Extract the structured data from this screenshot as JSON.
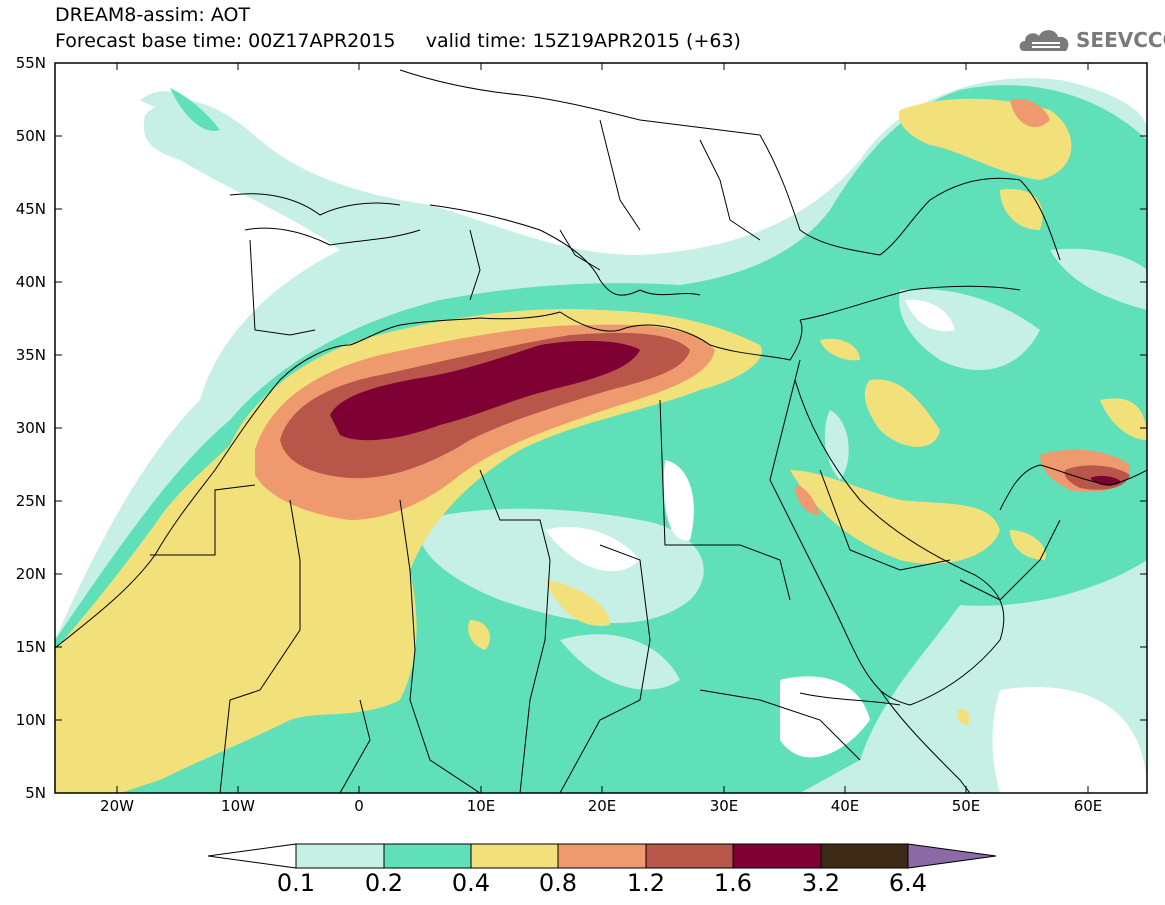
{
  "header": {
    "title_line1": "DREAM8-assim: AOT",
    "title_line2": "Forecast base time: 00Z17APR2015     valid time: 15Z19APR2015 (+63)",
    "logo_text": "SEEVCCC"
  },
  "map": {
    "lat_labels": [
      "55N",
      "50N",
      "45N",
      "40N",
      "35N",
      "30N",
      "25N",
      "20N",
      "15N",
      "10N",
      "5N"
    ],
    "lon_labels": [
      "20W",
      "10W",
      "0",
      "10E",
      "20E",
      "30E",
      "40E",
      "50E",
      "60E"
    ]
  },
  "colorbar": {
    "labels": [
      "0.1",
      "0.2",
      "0.4",
      "0.8",
      "1.2",
      "1.6",
      "3.2",
      "6.4"
    ],
    "colors": [
      "#ffffff",
      "#c6efe6",
      "#5fe0b8",
      "#f2e07a",
      "#ee9a6e",
      "#b8564a",
      "#7f0033",
      "#3c2a17",
      "#8b6aa6"
    ]
  },
  "palette": {
    "lightcyan": "#c6efe6",
    "green": "#5fe0b8",
    "yellow": "#f2e07a",
    "salmon": "#ee9a6e",
    "brick": "#b8564a",
    "maroon": "#7f0033"
  }
}
